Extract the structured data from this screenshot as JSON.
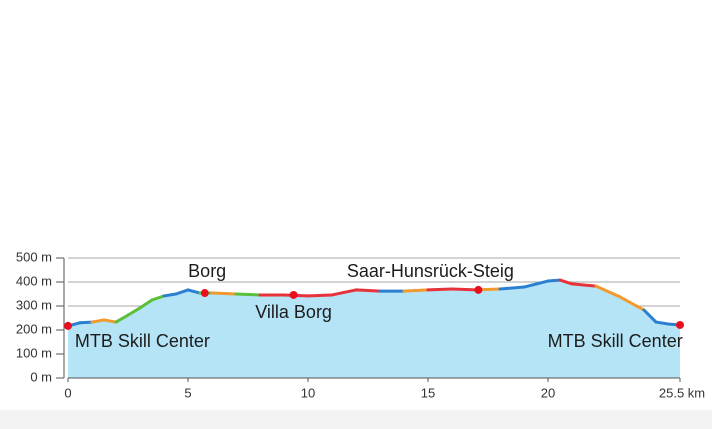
{
  "chart_data": {
    "type": "area",
    "x": [
      0,
      0.5,
      1,
      1.5,
      2,
      2.5,
      3,
      3.5,
      4,
      4.5,
      5,
      5.5,
      6,
      7,
      8,
      9,
      10,
      11,
      12,
      13,
      14,
      15,
      16,
      17,
      18,
      19,
      20,
      20.5,
      21,
      22,
      23,
      24,
      24.5,
      25,
      25.5
    ],
    "series": [
      {
        "values": [
          217,
          230,
          233,
          242,
          233,
          262,
          292,
          325,
          342,
          350,
          367,
          354,
          354,
          350,
          346,
          346,
          342,
          346,
          367,
          362,
          362,
          367,
          371,
          367,
          371,
          379,
          404,
          408,
          392,
          383,
          338,
          283,
          233,
          225,
          221
        ],
        "color": "#2a7fd0",
        "fill": "#b5e4f6",
        "point_colors": [
          "#2a7fd0",
          "#2a7fd0",
          "#2a7fd0",
          "#f29a2e",
          "#f29a2e",
          "#5cbf3a",
          "#5cbf3a",
          "#5cbf3a",
          "#5cbf3a",
          "#2a7fd0",
          "#2a7fd0",
          "#2a7fd0",
          "#5cbf3a",
          "#f29a2e",
          "#5cbf3a",
          "#e8323a",
          "#e8323a",
          "#e8323a",
          "#e8323a",
          "#e8323a",
          "#2a7fd0",
          "#f29a2e",
          "#e8323a",
          "#e8323a",
          "#f29a2e",
          "#2a7fd0",
          "#2a7fd0",
          "#2a7fd0",
          "#e8323a",
          "#e8323a",
          "#f29a2e",
          "#f29a2e",
          "#2a7fd0",
          "#2a7fd0",
          "#2a7fd0"
        ]
      }
    ],
    "waypoints": {
      "x": [
        0,
        5.7,
        9.4,
        17.1,
        25.5
      ],
      "values": [
        217,
        354,
        346,
        367,
        221
      ],
      "color": "#e8101e"
    },
    "annotations": [
      {
        "text": "Borg",
        "x": 5.8,
        "y": 440
      },
      {
        "text": "Saar-Hunsrück-Steig",
        "x": 15.1,
        "y": 440
      },
      {
        "text": "Villa Borg",
        "x": 9.4,
        "y": 270
      },
      {
        "text": "MTB Skill Center",
        "x": 3.1,
        "y": 150
      },
      {
        "text": "MTB Skill Center",
        "x": 22.8,
        "y": 150
      }
    ],
    "xlim": [
      0,
      25.5
    ],
    "ylim": [
      0,
      500
    ],
    "xticks": [
      0,
      5,
      10,
      15,
      20,
      {
        "value": 25.5,
        "label": "25.5 km"
      }
    ],
    "yticks": [
      {
        "value": 0,
        "label": "0 m"
      },
      {
        "value": 100,
        "label": "100 m"
      },
      {
        "value": 200,
        "label": "200 m"
      },
      {
        "value": 300,
        "label": "300 m"
      },
      {
        "value": 400,
        "label": "400 m"
      },
      {
        "value": 500,
        "label": "500 m"
      }
    ],
    "grid": true
  }
}
